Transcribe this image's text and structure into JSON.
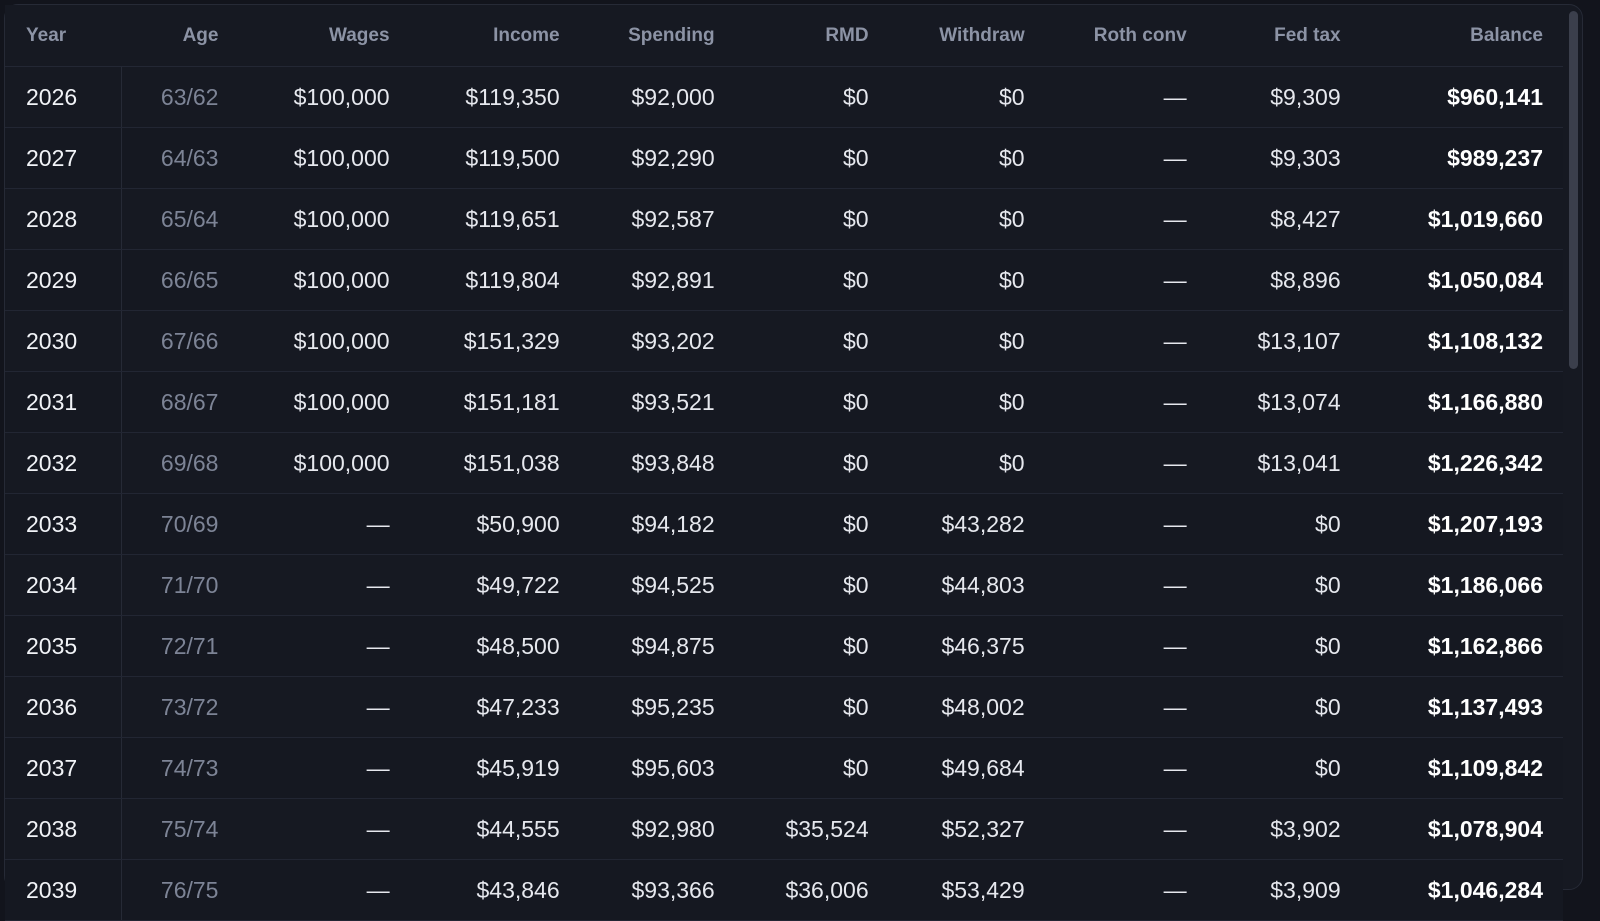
{
  "table": {
    "columns": [
      "Year",
      "Age",
      "Wages",
      "Income",
      "Spending",
      "RMD",
      "Withdraw",
      "Roth conv",
      "Fed tax",
      "Balance"
    ],
    "rows": [
      [
        "2026",
        "63/62",
        "$100,000",
        "$119,350",
        "$92,000",
        "$0",
        "$0",
        "—",
        "$9,309",
        "$960,141"
      ],
      [
        "2027",
        "64/63",
        "$100,000",
        "$119,500",
        "$92,290",
        "$0",
        "$0",
        "—",
        "$9,303",
        "$989,237"
      ],
      [
        "2028",
        "65/64",
        "$100,000",
        "$119,651",
        "$92,587",
        "$0",
        "$0",
        "—",
        "$8,427",
        "$1,019,660"
      ],
      [
        "2029",
        "66/65",
        "$100,000",
        "$119,804",
        "$92,891",
        "$0",
        "$0",
        "—",
        "$8,896",
        "$1,050,084"
      ],
      [
        "2030",
        "67/66",
        "$100,000",
        "$151,329",
        "$93,202",
        "$0",
        "$0",
        "—",
        "$13,107",
        "$1,108,132"
      ],
      [
        "2031",
        "68/67",
        "$100,000",
        "$151,181",
        "$93,521",
        "$0",
        "$0",
        "—",
        "$13,074",
        "$1,166,880"
      ],
      [
        "2032",
        "69/68",
        "$100,000",
        "$151,038",
        "$93,848",
        "$0",
        "$0",
        "—",
        "$13,041",
        "$1,226,342"
      ],
      [
        "2033",
        "70/69",
        "—",
        "$50,900",
        "$94,182",
        "$0",
        "$43,282",
        "—",
        "$0",
        "$1,207,193"
      ],
      [
        "2034",
        "71/70",
        "—",
        "$49,722",
        "$94,525",
        "$0",
        "$44,803",
        "—",
        "$0",
        "$1,186,066"
      ],
      [
        "2035",
        "72/71",
        "—",
        "$48,500",
        "$94,875",
        "$0",
        "$46,375",
        "—",
        "$0",
        "$1,162,866"
      ],
      [
        "2036",
        "73/72",
        "—",
        "$47,233",
        "$95,235",
        "$0",
        "$48,002",
        "—",
        "$0",
        "$1,137,493"
      ],
      [
        "2037",
        "74/73",
        "—",
        "$45,919",
        "$95,603",
        "$0",
        "$49,684",
        "—",
        "$0",
        "$1,109,842"
      ],
      [
        "2038",
        "75/74",
        "—",
        "$44,555",
        "$92,980",
        "$35,524",
        "$52,327",
        "—",
        "$3,902",
        "$1,078,904"
      ],
      [
        "2039",
        "76/75",
        "—",
        "$43,846",
        "$93,366",
        "$36,006",
        "$53,429",
        "—",
        "$3,909",
        "$1,046,284"
      ]
    ]
  },
  "colors": {
    "background": "#12141c",
    "panel": "#161922",
    "header_text": "#8c93a5",
    "cell_text": "#e6e8ee",
    "age_text": "#7d8496",
    "scrollbar_thumb": "#3b3f4c"
  }
}
